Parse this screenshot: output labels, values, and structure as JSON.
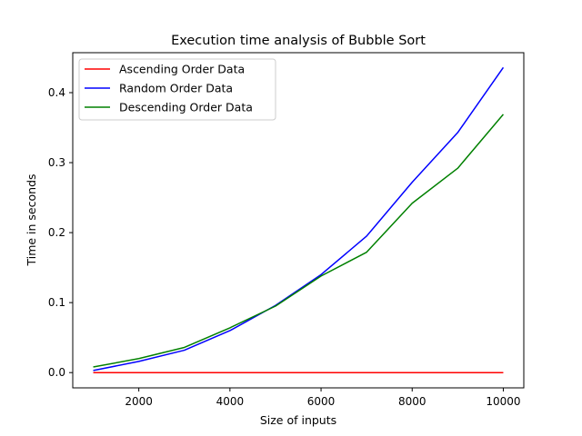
{
  "chart_data": {
    "type": "line",
    "title": "Execution time analysis of Bubble Sort",
    "xlabel": "Size of inputs",
    "ylabel": "Time in seconds",
    "x": [
      1000,
      2000,
      3000,
      4000,
      5000,
      6000,
      7000,
      8000,
      9000,
      10000
    ],
    "xlim": [
      550,
      10450
    ],
    "ylim": [
      -0.0218,
      0.4571
    ],
    "xticks": [
      2000,
      4000,
      6000,
      8000,
      10000
    ],
    "yticks": [
      0.0,
      0.1,
      0.2,
      0.3,
      0.4
    ],
    "xtick_labels": [
      "2000",
      "4000",
      "6000",
      "8000",
      "10000"
    ],
    "ytick_labels": [
      "0.0",
      "0.1",
      "0.2",
      "0.3",
      "0.4"
    ],
    "grid": false,
    "legend_position": "top-left",
    "series": [
      {
        "name": "Ascending Order Data",
        "color": "#ff0000",
        "values": [
          0.0,
          0.0,
          0.0,
          0.0,
          0.0,
          0.0,
          0.0,
          0.0,
          0.0,
          0.0
        ]
      },
      {
        "name": "Random Order Data",
        "color": "#0000ff",
        "values": [
          0.003,
          0.016,
          0.032,
          0.06,
          0.096,
          0.14,
          0.195,
          0.272,
          0.343,
          0.436
        ]
      },
      {
        "name": "Descending Order Data",
        "color": "#008000",
        "values": [
          0.008,
          0.02,
          0.036,
          0.064,
          0.095,
          0.138,
          0.172,
          0.242,
          0.292,
          0.369
        ]
      }
    ]
  }
}
